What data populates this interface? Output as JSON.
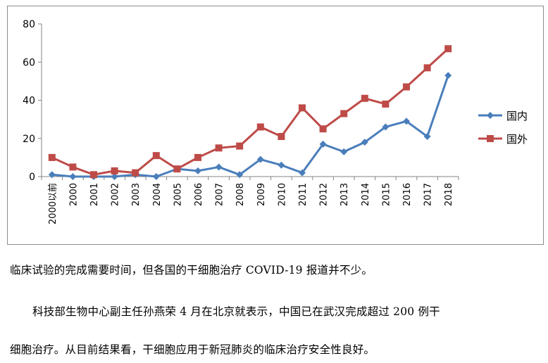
{
  "chart_data": {
    "type": "line",
    "categories": [
      "2000以前",
      "2000",
      "2001",
      "2002",
      "2003",
      "2004",
      "2005",
      "2006",
      "2007",
      "2008",
      "2009",
      "2010",
      "2011",
      "2012",
      "2013",
      "2014",
      "2015",
      "2016",
      "2017",
      "2018"
    ],
    "yticks": [
      "0",
      "20",
      "40",
      "60",
      "80"
    ],
    "ylim": [
      0,
      80
    ],
    "grid": false,
    "legend_position": "right",
    "series": [
      {
        "name": "国内",
        "color": "#4a7ebb",
        "marker": "diamond",
        "values": [
          1,
          0,
          0,
          0,
          1,
          0,
          4,
          3,
          5,
          1,
          9,
          6,
          2,
          17,
          13,
          18,
          26,
          29,
          21,
          53
        ]
      },
      {
        "name": "国外",
        "color": "#be4b48",
        "marker": "square",
        "values": [
          10,
          5,
          1,
          3,
          2,
          11,
          4,
          10,
          15,
          16,
          26,
          21,
          36,
          25,
          33,
          41,
          38,
          47,
          57,
          67
        ]
      }
    ]
  },
  "text": {
    "para1": "临床试验的完成需要时间，但各国的干细胞治疗 COVID-19 报道并不少。",
    "para2": "科技部生物中心副主任孙燕荣 4 月在北京就表示，中国已在武汉完成超过 200 例干",
    "para3": "细胞治疗。从目前结果看，干细胞应用于新冠肺炎的临床治疗安全性良好。"
  }
}
